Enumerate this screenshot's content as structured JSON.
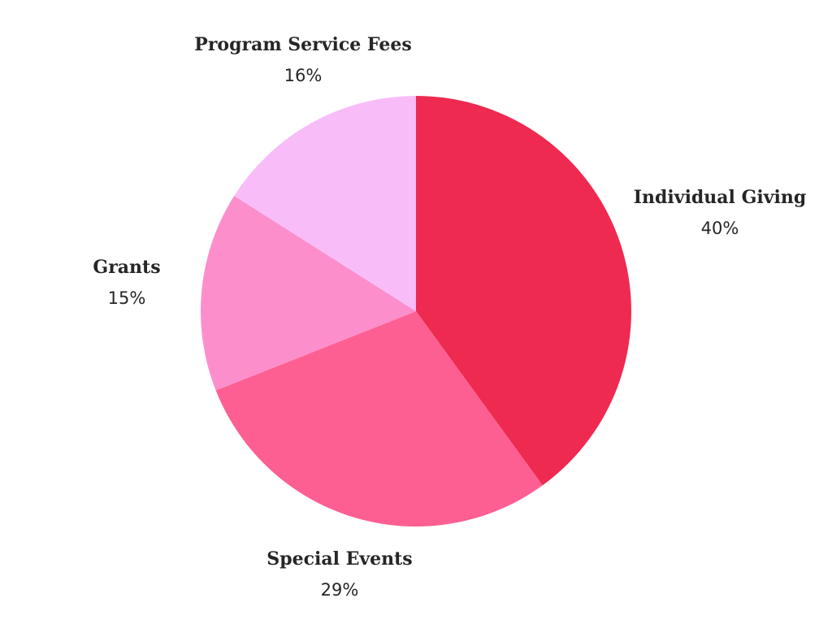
{
  "chart_data": {
    "type": "pie",
    "slices": [
      {
        "label": "Individual Giving",
        "value": 40,
        "value_label": "40%",
        "color": "#ee2a50"
      },
      {
        "label": "Special Events",
        "value": 29,
        "value_label": "29%",
        "color": "#fe5f92"
      },
      {
        "label": "Grants",
        "value": 15,
        "value_label": "15%",
        "color": "#fd8ecc"
      },
      {
        "label": "Program Service Fees",
        "value": 16,
        "value_label": "16%",
        "color": "#f8bdf8"
      }
    ],
    "start_angle": "12 o'clock",
    "direction": "clockwise",
    "legend": "none"
  }
}
